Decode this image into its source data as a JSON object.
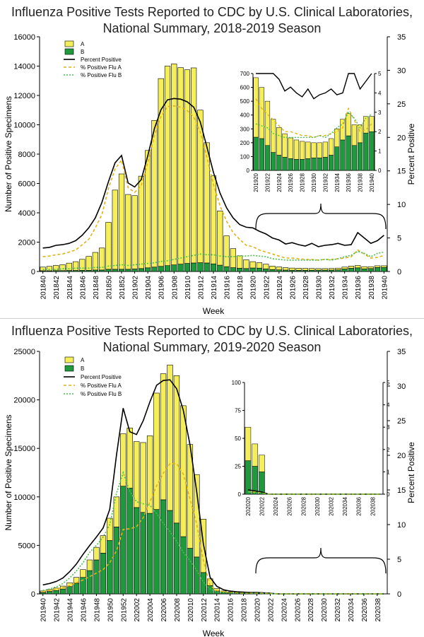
{
  "chart_data": [
    {
      "type": "bar",
      "title_line1": "Influenza Positive Tests Reported to CDC by U.S. Clinical Laboratories,",
      "title_line2": "National Summary, 2018-2019 Season",
      "xlabel": "Week",
      "ylabel": "Number of Positive Specimens",
      "y2label": "Percent Positive",
      "ylim": [
        0,
        16000
      ],
      "yticks": [
        0,
        2000,
        4000,
        6000,
        8000,
        10000,
        12000,
        14000,
        16000
      ],
      "y2lim": [
        0,
        35
      ],
      "y2ticks": [
        0,
        5,
        10,
        15,
        20,
        25,
        30,
        35
      ],
      "stacked": true,
      "legend_position": "top-left",
      "legend": [
        "A",
        "B",
        "Percent Positive",
        "% Positive Flu A",
        "% Positive Flu B"
      ],
      "colors": {
        "A": "#f4ee5a",
        "B": "#1e9a3c",
        "pct": "#000000",
        "pctA": "#e0b21a",
        "pctB": "#4cbf4c"
      },
      "categories": [
        "201840",
        "201841",
        "201842",
        "201843",
        "201844",
        "201845",
        "201846",
        "201847",
        "201848",
        "201849",
        "201850",
        "201851",
        "201852",
        "201901",
        "201902",
        "201903",
        "201904",
        "201905",
        "201906",
        "201907",
        "201908",
        "201909",
        "201910",
        "201911",
        "201912",
        "201913",
        "201914",
        "201915",
        "201916",
        "201917",
        "201918",
        "201919",
        "201920",
        "201921",
        "201922",
        "201923",
        "201924",
        "201925",
        "201926",
        "201927",
        "201928",
        "201929",
        "201930",
        "201931",
        "201932",
        "201933",
        "201934",
        "201935",
        "201936",
        "201937",
        "201938",
        "201939",
        "201940"
      ],
      "tick_labels": [
        "201840",
        "201842",
        "201844",
        "201846",
        "201848",
        "201850",
        "201852",
        "201902",
        "201904",
        "201906",
        "201908",
        "201910",
        "201912",
        "201914",
        "201916",
        "201918",
        "201920",
        "201922",
        "201924",
        "201926",
        "201928",
        "201930",
        "201932",
        "201934",
        "201936",
        "201938",
        "201940"
      ],
      "series": [
        {
          "name": "A",
          "values": [
            250,
            300,
            350,
            400,
            500,
            600,
            750,
            950,
            1200,
            1500,
            3200,
            5400,
            6500,
            5100,
            5000,
            6300,
            8000,
            10000,
            12800,
            13600,
            13700,
            13400,
            13200,
            13300,
            10400,
            8200,
            6000,
            3700,
            2100,
            1300,
            850,
            600,
            430,
            370,
            320,
            240,
            200,
            170,
            150,
            140,
            130,
            120,
            110,
            110,
            110,
            120,
            130,
            150,
            160,
            150,
            130,
            120,
            110
          ]
        },
        {
          "name": "B",
          "values": [
            50,
            50,
            60,
            60,
            70,
            70,
            80,
            80,
            100,
            100,
            150,
            150,
            150,
            150,
            170,
            200,
            250,
            300,
            350,
            400,
            450,
            500,
            550,
            580,
            600,
            580,
            520,
            430,
            330,
            260,
            220,
            200,
            240,
            230,
            180,
            130,
            110,
            95,
            85,
            80,
            80,
            85,
            90,
            90,
            95,
            110,
            170,
            220,
            250,
            180,
            200,
            270,
            280
          ]
        },
        {
          "name": "Percent Positive",
          "axis": "right",
          "values": [
            3.5,
            3.6,
            3.9,
            4.0,
            4.2,
            4.6,
            5.4,
            6.5,
            8.0,
            10.3,
            13.4,
            16.2,
            17.3,
            13.2,
            12.6,
            13.7,
            17.3,
            21.3,
            24.1,
            25.6,
            25.8,
            25.7,
            25.3,
            24.5,
            22.3,
            18.6,
            14.8,
            11.7,
            9.5,
            8.0,
            7.0,
            6.6,
            6.5,
            6.0,
            5.6,
            5.0,
            4.7,
            4.1,
            4.3,
            4.0,
            3.8,
            4.2,
            3.7,
            3.9,
            4.0,
            4.2,
            3.9,
            4.0,
            5.8,
            5.0,
            4.2,
            4.6,
            5.4
          ]
        },
        {
          "name": "% Positive Flu A",
          "axis": "right",
          "values": [
            2.2,
            2.3,
            2.5,
            2.6,
            2.9,
            3.2,
            4.0,
            4.8,
            6.5,
            8.5,
            12.4,
            15.3,
            16.6,
            12.5,
            11.8,
            12.8,
            16.2,
            20.3,
            23.1,
            24.6,
            24.7,
            24.5,
            24.0,
            23.0,
            20.8,
            17.1,
            13.0,
            9.8,
            7.5,
            5.8,
            4.8,
            3.9,
            3.7,
            3.2,
            2.9,
            2.6,
            2.3,
            2.0,
            2.0,
            1.9,
            1.8,
            1.8,
            1.7,
            1.8,
            1.8,
            1.9,
            2.0,
            2.2,
            3.2,
            2.6,
            2.0,
            2.1,
            2.4
          ]
        },
        {
          "name": "% Positive Flu B",
          "axis": "right",
          "values": [
            0.3,
            0.3,
            0.3,
            0.4,
            0.4,
            0.5,
            0.5,
            0.5,
            0.6,
            0.6,
            0.8,
            0.9,
            1.0,
            0.9,
            1.0,
            1.1,
            1.2,
            1.3,
            1.5,
            1.6,
            1.8,
            2.0,
            2.2,
            2.4,
            2.6,
            2.5,
            2.5,
            2.3,
            2.2,
            2.2,
            2.3,
            2.3,
            2.4,
            2.3,
            2.2,
            1.9,
            1.8,
            1.7,
            1.7,
            1.7,
            1.7,
            1.7,
            1.7,
            1.8,
            1.7,
            1.9,
            2.2,
            2.4,
            3.0,
            2.7,
            2.2,
            2.7,
            2.9
          ]
        }
      ],
      "inset": {
        "from": "201920",
        "to": "201940",
        "ylim": [
          0,
          700
        ],
        "yticks": [
          0,
          100,
          200,
          300,
          400,
          500,
          600,
          700
        ],
        "y2lim": [
          0,
          5
        ],
        "y2ticks": [
          0,
          1,
          2,
          3,
          4,
          5
        ],
        "tick_labels": [
          "201920",
          "201922",
          "201924",
          "201926",
          "201928",
          "201930",
          "201932",
          "201934",
          "201936",
          "201938",
          "201940"
        ]
      }
    },
    {
      "type": "bar",
      "title_line1": "Influenza Positive Tests Reported to CDC by U.S. Clinical Laboratories,",
      "title_line2": "National Summary, 2019-2020 Season",
      "xlabel": "Week",
      "ylabel": "Number of Positive Specimens",
      "y2label": "Percent Positive",
      "ylim": [
        0,
        25000
      ],
      "yticks": [
        0,
        5000,
        10000,
        15000,
        20000,
        25000
      ],
      "y2lim": [
        0,
        35
      ],
      "y2ticks": [
        0,
        5,
        10,
        15,
        20,
        25,
        30,
        35
      ],
      "stacked": true,
      "legend_position": "top-left",
      "legend": [
        "A",
        "B",
        "Percent Positive",
        "% Positive Flu A",
        "% Positive Flu B"
      ],
      "colors": {
        "A": "#f4ee5a",
        "B": "#1e9a3c",
        "pct": "#000000",
        "pctA": "#e0b21a",
        "pctB": "#4cbf4c"
      },
      "categories": [
        "201940",
        "201941",
        "201942",
        "201943",
        "201944",
        "201945",
        "201946",
        "201947",
        "201948",
        "201949",
        "201950",
        "201951",
        "201952",
        "202001",
        "202002",
        "202003",
        "202004",
        "202005",
        "202006",
        "202007",
        "202008",
        "202009",
        "202010",
        "202011",
        "202012",
        "202013",
        "202014",
        "202015",
        "202016",
        "202017",
        "202018",
        "202019",
        "202020",
        "202021",
        "202022",
        "202023",
        "202024",
        "202025",
        "202026",
        "202027",
        "202028",
        "202029",
        "202030",
        "202031",
        "202032",
        "202033",
        "202034",
        "202035",
        "202036",
        "202037",
        "202038",
        "202039"
      ],
      "tick_labels": [
        "201940",
        "201942",
        "201944",
        "201946",
        "201948",
        "201950",
        "201952",
        "202002",
        "202004",
        "202006",
        "202008",
        "202010",
        "202012",
        "202014",
        "202016",
        "202018",
        "202020",
        "202022",
        "202024",
        "202026",
        "202028",
        "202030",
        "202032",
        "202034",
        "202036",
        "202038"
      ],
      "series": [
        {
          "name": "A",
          "values": [
            150,
            200,
            250,
            300,
            400,
            600,
            800,
            1100,
            1300,
            1800,
            2300,
            3100,
            5400,
            6200,
            6800,
            7200,
            8000,
            12000,
            13000,
            15000,
            15200,
            13500,
            10700,
            8500,
            5500,
            700,
            250,
            150,
            100,
            80,
            60,
            50,
            30,
            20,
            15,
            0,
            0,
            0,
            0,
            0,
            0,
            0,
            0,
            0,
            0,
            0,
            0,
            0,
            0,
            0,
            0,
            0
          ]
        },
        {
          "name": "B",
          "values": [
            150,
            250,
            350,
            500,
            750,
            1100,
            1700,
            2400,
            3500,
            4200,
            5500,
            6900,
            11100,
            10900,
            8900,
            8400,
            8300,
            8700,
            9700,
            8600,
            7300,
            5900,
            4700,
            3800,
            2200,
            850,
            300,
            150,
            100,
            70,
            50,
            40,
            30,
            25,
            20,
            0,
            0,
            0,
            0,
            0,
            0,
            0,
            0,
            0,
            0,
            0,
            0,
            0,
            0,
            0,
            0,
            0
          ]
        },
        {
          "name": "Percent Positive",
          "axis": "right",
          "values": [
            1.3,
            1.5,
            1.8,
            2.3,
            3.2,
            4.3,
            5.7,
            7.0,
            8.2,
            9.5,
            12.2,
            20.0,
            26.8,
            23.4,
            23.0,
            25.0,
            27.7,
            30.1,
            30.8,
            30.9,
            29.6,
            26.5,
            21.5,
            14.8,
            7.2,
            2.4,
            1.1,
            0.6,
            0.4,
            0.3,
            0.25,
            0.2,
            0.2,
            0.15,
            0.1,
            0,
            0,
            0,
            0,
            0,
            0,
            0,
            0,
            0,
            0,
            0,
            0,
            0,
            0,
            0,
            0,
            0
          ]
        },
        {
          "name": "% Positive Flu A",
          "axis": "right",
          "values": [
            0.4,
            0.5,
            0.7,
            0.9,
            1.2,
            1.6,
            2.0,
            2.5,
            3.0,
            3.5,
            4.5,
            6.2,
            9.3,
            9.4,
            9.7,
            11.0,
            13.3,
            15.6,
            17.4,
            18.8,
            18.8,
            17.3,
            13.7,
            10.1,
            4.8,
            1.2,
            0.5,
            0.3,
            0.2,
            0.15,
            0.1,
            0.1,
            0.1,
            0.1,
            0.05,
            0,
            0,
            0,
            0,
            0,
            0,
            0,
            0,
            0,
            0,
            0,
            0,
            0,
            0,
            0,
            0,
            0
          ]
        },
        {
          "name": "% Positive Flu B",
          "axis": "right",
          "values": [
            0.5,
            0.7,
            1.0,
            1.5,
            2.3,
            3.3,
            4.5,
            6.0,
            7.0,
            8.2,
            10.0,
            14.5,
            17.5,
            14.8,
            13.3,
            13.0,
            12.8,
            11.6,
            10.2,
            9.0,
            7.6,
            6.0,
            4.8,
            3.4,
            1.7,
            0.7,
            0.3,
            0.2,
            0.15,
            0.1,
            0.1,
            0.1,
            0.1,
            0.05,
            0.05,
            0,
            0,
            0,
            0,
            0,
            0,
            0,
            0,
            0,
            0,
            0,
            0,
            0,
            0,
            0,
            0,
            0
          ]
        }
      ],
      "inset": {
        "from": "202020",
        "to": "202039",
        "ylim": [
          0,
          100
        ],
        "yticks": [
          0,
          25,
          50,
          75,
          100
        ],
        "y2lim": [
          0,
          5
        ],
        "y2ticks": [
          0,
          1,
          2,
          3,
          4,
          5
        ],
        "tick_labels": [
          "202020",
          "202022",
          "202024",
          "202026",
          "202028",
          "202030",
          "202032",
          "202034",
          "202036",
          "202038"
        ]
      }
    }
  ]
}
